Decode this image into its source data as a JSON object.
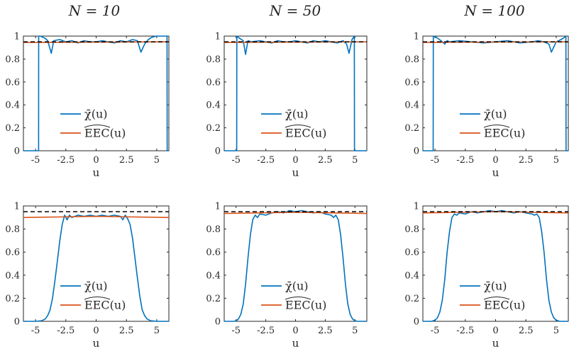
{
  "titles": [
    "N = 10",
    "N = 50",
    "N = 100"
  ],
  "colors": {
    "chi": "#0072BD",
    "eec": "#D95319",
    "target": "#000000"
  },
  "chart_data": [
    {
      "type": "line",
      "row": 1,
      "col": 1,
      "title": "N = 10",
      "xlabel": "u",
      "ylabel": "",
      "xlim": [
        -6,
        6
      ],
      "ylim": [
        0,
        1
      ],
      "xticks": [
        -5,
        -2.5,
        0,
        2.5,
        5
      ],
      "xtick_labels": [
        "-5",
        "-2.5",
        "0",
        "2.5",
        "5"
      ],
      "yticks": [
        0,
        0.2,
        0.4,
        0.6,
        0.8,
        1
      ],
      "ytick_labels": [
        "0",
        "0.2",
        "0.4",
        "0.6",
        "0.8",
        "1"
      ],
      "legend": {
        "position": "center-left",
        "entries": [
          "χ̄(u)",
          "EEC(u)"
        ]
      },
      "series": [
        {
          "name": "χ̄(u)",
          "color": "#0072BD",
          "x": [
            -6,
            -4.75,
            -4.74,
            -4.6,
            -4.2,
            -4.0,
            -3.7,
            -3.5,
            -3.0,
            -2.5,
            -2.0,
            -1.5,
            -1.0,
            -0.5,
            0,
            0.5,
            1.0,
            1.5,
            2.0,
            2.5,
            3.0,
            3.4,
            3.7,
            4.0,
            4.3,
            4.6,
            5.0,
            5.3,
            5.7,
            5.85,
            5.86,
            6
          ],
          "y": [
            0,
            0,
            1.0,
            1.0,
            0.98,
            0.96,
            0.85,
            0.96,
            0.97,
            0.95,
            0.96,
            0.94,
            0.96,
            0.95,
            0.95,
            0.96,
            0.95,
            0.94,
            0.96,
            0.95,
            0.97,
            0.96,
            0.86,
            0.93,
            0.97,
            0.99,
            1.0,
            1.0,
            1.0,
            1.0,
            0,
            0
          ]
        },
        {
          "name": "EEC(u)",
          "color": "#D95319",
          "x": [
            -6,
            6
          ],
          "y": [
            0.945,
            0.95
          ]
        },
        {
          "name": "target",
          "color": "#000000",
          "dashed": true,
          "x": [
            -6,
            6
          ],
          "y": [
            0.95,
            0.95
          ]
        }
      ]
    },
    {
      "type": "line",
      "row": 1,
      "col": 2,
      "title": "N = 50",
      "xlabel": "u",
      "ylabel": "",
      "xlim": [
        -6,
        6
      ],
      "ylim": [
        0,
        1
      ],
      "xticks": [
        -5,
        -2.5,
        0,
        2.5,
        5
      ],
      "xtick_labels": [
        "-5",
        "-2.5",
        "0",
        "2.5",
        "5"
      ],
      "yticks": [
        0,
        0.2,
        0.4,
        0.6,
        0.8,
        1
      ],
      "ytick_labels": [
        "0",
        "0.2",
        "0.4",
        "0.6",
        "0.8",
        "1"
      ],
      "legend": {
        "position": "center-left",
        "entries": [
          "χ̄(u)",
          "EEC(u)"
        ]
      },
      "series": [
        {
          "name": "χ̄(u)",
          "color": "#0072BD",
          "x": [
            -6,
            -4.95,
            -4.94,
            -4.7,
            -4.4,
            -4.2,
            -4.0,
            -3.7,
            -3.0,
            -2.5,
            -2.0,
            -1.5,
            -1.0,
            -0.5,
            0,
            0.5,
            1.0,
            1.5,
            2.0,
            2.5,
            3.0,
            3.5,
            4.0,
            4.3,
            4.5,
            4.75,
            4.95,
            4.96,
            6
          ],
          "y": [
            0,
            0,
            1.0,
            0.98,
            0.96,
            0.84,
            0.96,
            0.95,
            0.96,
            0.95,
            0.94,
            0.96,
            0.95,
            0.95,
            0.96,
            0.95,
            0.94,
            0.96,
            0.95,
            0.96,
            0.95,
            0.94,
            0.96,
            0.93,
            0.85,
            0.97,
            1.0,
            0,
            0
          ]
        },
        {
          "name": "EEC(u)",
          "color": "#D95319",
          "x": [
            -6,
            6
          ],
          "y": [
            0.945,
            0.95
          ]
        },
        {
          "name": "target",
          "color": "#000000",
          "dashed": true,
          "x": [
            -6,
            6
          ],
          "y": [
            0.95,
            0.95
          ]
        }
      ]
    },
    {
      "type": "line",
      "row": 1,
      "col": 3,
      "title": "N = 100",
      "xlabel": "u",
      "ylabel": "",
      "xlim": [
        -6,
        6
      ],
      "ylim": [
        0,
        1
      ],
      "xticks": [
        -5,
        -2.5,
        0,
        2.5,
        5
      ],
      "xtick_labels": [
        "-5",
        "-2.5",
        "0",
        "2.5",
        "5"
      ],
      "yticks": [
        0,
        0.2,
        0.4,
        0.6,
        0.8,
        1
      ],
      "ytick_labels": [
        "0",
        "0.2",
        "0.4",
        "0.6",
        "0.8",
        "1"
      ],
      "legend": {
        "position": "center-left",
        "entries": [
          "χ̄(u)",
          "EEC(u)"
        ]
      },
      "series": [
        {
          "name": "χ̄(u)",
          "color": "#0072BD",
          "x": [
            -6,
            -5.15,
            -5.14,
            -4.9,
            -4.5,
            -4.2,
            -4.0,
            -3.8,
            -3.0,
            -2.0,
            -1.0,
            0,
            1.0,
            2.0,
            3.0,
            3.5,
            4.0,
            4.4,
            4.6,
            5.0,
            5.4,
            5.7,
            5.8,
            5.81,
            6
          ],
          "y": [
            0,
            0,
            1.0,
            0.99,
            0.96,
            0.93,
            0.96,
            0.95,
            0.96,
            0.95,
            0.94,
            0.95,
            0.96,
            0.94,
            0.95,
            0.96,
            0.95,
            0.93,
            0.86,
            0.95,
            0.97,
            0.99,
            1.0,
            0,
            0
          ]
        },
        {
          "name": "EEC(u)",
          "color": "#D95319",
          "x": [
            -6,
            6
          ],
          "y": [
            0.945,
            0.95
          ]
        },
        {
          "name": "target",
          "color": "#000000",
          "dashed": true,
          "x": [
            -6,
            6
          ],
          "y": [
            0.95,
            0.95
          ]
        }
      ]
    },
    {
      "type": "line",
      "row": 2,
      "col": 1,
      "title": "",
      "xlabel": "u",
      "ylabel": "",
      "xlim": [
        -6,
        6
      ],
      "ylim": [
        0,
        1
      ],
      "xticks": [
        -5,
        -2.5,
        0,
        2.5,
        5
      ],
      "xtick_labels": [
        "-5",
        "-2.5",
        "0",
        "2.5",
        "5"
      ],
      "yticks": [
        0,
        0.2,
        0.4,
        0.6,
        0.8,
        1
      ],
      "ytick_labels": [
        "0",
        "0.2",
        "0.4",
        "0.6",
        "0.8",
        "1"
      ],
      "legend": {
        "position": "lower-left",
        "entries": [
          "χ̄(u)",
          "EEC(u)"
        ]
      },
      "series": [
        {
          "name": "χ̄(u)",
          "color": "#0072BD",
          "x": [
            -6,
            -5.0,
            -4.5,
            -4.2,
            -4.0,
            -3.8,
            -3.6,
            -3.4,
            -3.2,
            -3.0,
            -2.8,
            -2.6,
            -2.4,
            -2.2,
            -2.0,
            -1.5,
            -1.0,
            -0.5,
            0,
            0.5,
            1.0,
            1.5,
            2.0,
            2.2,
            2.4,
            2.6,
            2.8,
            3.0,
            3.2,
            3.4,
            3.6,
            3.8,
            4.0,
            4.2,
            4.5,
            5.0,
            6
          ],
          "y": [
            0,
            0,
            0.005,
            0.02,
            0.05,
            0.1,
            0.2,
            0.35,
            0.52,
            0.7,
            0.84,
            0.92,
            0.88,
            0.92,
            0.9,
            0.92,
            0.91,
            0.92,
            0.91,
            0.92,
            0.91,
            0.92,
            0.91,
            0.88,
            0.92,
            0.89,
            0.84,
            0.72,
            0.55,
            0.38,
            0.22,
            0.1,
            0.05,
            0.02,
            0.005,
            0,
            0
          ]
        },
        {
          "name": "EEC(u)",
          "color": "#D95319",
          "x": [
            -6,
            -3,
            0,
            3,
            6
          ],
          "y": [
            0.9,
            0.905,
            0.91,
            0.905,
            0.9
          ]
        },
        {
          "name": "target",
          "color": "#000000",
          "dashed": true,
          "x": [
            -6,
            6
          ],
          "y": [
            0.95,
            0.95
          ]
        }
      ]
    },
    {
      "type": "line",
      "row": 2,
      "col": 2,
      "title": "",
      "xlabel": "u",
      "ylabel": "",
      "xlim": [
        -6,
        6
      ],
      "ylim": [
        0,
        1
      ],
      "xticks": [
        -5,
        -2.5,
        0,
        2.5,
        5
      ],
      "xtick_labels": [
        "-5",
        "-2.5",
        "0",
        "2.5",
        "5"
      ],
      "yticks": [
        0,
        0.2,
        0.4,
        0.6,
        0.8,
        1
      ],
      "ytick_labels": [
        "0",
        "0.2",
        "0.4",
        "0.6",
        "0.8",
        "1"
      ],
      "legend": {
        "position": "lower-left",
        "entries": [
          "χ̄(u)",
          "EEC(u)"
        ]
      },
      "series": [
        {
          "name": "χ̄(u)",
          "color": "#0072BD",
          "x": [
            -6,
            -5.2,
            -5.0,
            -4.8,
            -4.6,
            -4.4,
            -4.2,
            -4.0,
            -3.8,
            -3.6,
            -3.4,
            -3.2,
            -3.0,
            -2.5,
            -2.0,
            -1.5,
            -1.0,
            -0.5,
            0,
            0.5,
            1.0,
            1.5,
            2.0,
            2.5,
            3.0,
            3.2,
            3.4,
            3.6,
            3.8,
            4.0,
            4.2,
            4.4,
            4.6,
            4.8,
            5.0,
            5.2,
            6
          ],
          "y": [
            0,
            0,
            0.005,
            0.02,
            0.06,
            0.15,
            0.32,
            0.55,
            0.75,
            0.88,
            0.92,
            0.9,
            0.93,
            0.92,
            0.94,
            0.95,
            0.94,
            0.96,
            0.95,
            0.96,
            0.95,
            0.94,
            0.95,
            0.93,
            0.92,
            0.9,
            0.92,
            0.88,
            0.75,
            0.55,
            0.32,
            0.15,
            0.06,
            0.02,
            0.005,
            0,
            0
          ]
        },
        {
          "name": "EEC(u)",
          "color": "#D95319",
          "x": [
            -6,
            -3,
            0,
            3,
            6
          ],
          "y": [
            0.935,
            0.94,
            0.945,
            0.94,
            0.935
          ]
        },
        {
          "name": "target",
          "color": "#000000",
          "dashed": true,
          "x": [
            -6,
            6
          ],
          "y": [
            0.95,
            0.95
          ]
        }
      ]
    },
    {
      "type": "line",
      "row": 2,
      "col": 3,
      "title": "",
      "xlabel": "u",
      "ylabel": "",
      "xlim": [
        -6,
        6
      ],
      "ylim": [
        0,
        1
      ],
      "xticks": [
        -5,
        -2.5,
        0,
        2.5,
        5
      ],
      "xtick_labels": [
        "-5",
        "-2.5",
        "0",
        "2.5",
        "5"
      ],
      "yticks": [
        0,
        0.2,
        0.4,
        0.6,
        0.8,
        1
      ],
      "ytick_labels": [
        "0",
        "0.2",
        "0.4",
        "0.6",
        "0.8",
        "1"
      ],
      "legend": {
        "position": "lower-left",
        "entries": [
          "χ̄(u)",
          "EEC(u)"
        ]
      },
      "series": [
        {
          "name": "χ̄(u)",
          "color": "#0072BD",
          "x": [
            -6,
            -5.3,
            -5.0,
            -4.8,
            -4.6,
            -4.4,
            -4.2,
            -4.0,
            -3.8,
            -3.6,
            -3.4,
            -3.2,
            -3.0,
            -2.5,
            -2.0,
            -1.5,
            -1.0,
            -0.5,
            0,
            0.5,
            1.0,
            1.5,
            2.0,
            2.5,
            3.0,
            3.2,
            3.4,
            3.6,
            3.8,
            4.0,
            4.2,
            4.4,
            4.6,
            4.8,
            5.0,
            5.3,
            6
          ],
          "y": [
            0,
            0,
            0.01,
            0.03,
            0.08,
            0.18,
            0.36,
            0.6,
            0.78,
            0.9,
            0.93,
            0.92,
            0.94,
            0.93,
            0.95,
            0.94,
            0.95,
            0.96,
            0.95,
            0.96,
            0.95,
            0.94,
            0.95,
            0.94,
            0.93,
            0.92,
            0.93,
            0.9,
            0.78,
            0.6,
            0.36,
            0.18,
            0.08,
            0.03,
            0.01,
            0,
            0
          ]
        },
        {
          "name": "EEC(u)",
          "color": "#D95319",
          "x": [
            -6,
            -3,
            0,
            3,
            6
          ],
          "y": [
            0.94,
            0.945,
            0.95,
            0.945,
            0.94
          ]
        },
        {
          "name": "target",
          "color": "#000000",
          "dashed": true,
          "x": [
            -6,
            6
          ],
          "y": [
            0.95,
            0.95
          ]
        }
      ]
    }
  ]
}
